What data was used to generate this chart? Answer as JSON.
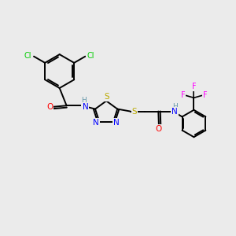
{
  "background_color": "#ebebeb",
  "bond_color": "#000000",
  "atom_colors": {
    "N": "#0000ff",
    "O": "#ff0000",
    "S": "#bbaa00",
    "Cl": "#00cc00",
    "F": "#ff00ff",
    "H": "#6699aa"
  },
  "figsize": [
    3.0,
    3.0
  ],
  "dpi": 100
}
